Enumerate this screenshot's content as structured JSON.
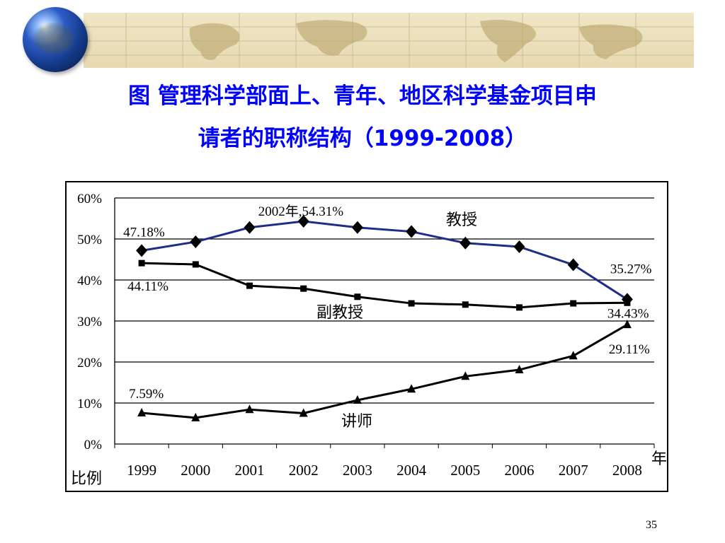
{
  "slide": {
    "title_line1": "图 管理科学部面上、青年、地区科学基金项目申",
    "title_line2": "请者的职称结构（1999-2008）",
    "page_number": "35",
    "title_color": "#0000ff"
  },
  "chart_data": {
    "type": "line",
    "title": "",
    "xlabel": "年份",
    "ylabel": "比例",
    "categories": [
      "1999",
      "2000",
      "2001",
      "2002",
      "2003",
      "2004",
      "2005",
      "2006",
      "2007",
      "2008"
    ],
    "ylim": [
      0,
      60
    ],
    "yticks": [
      "0%",
      "10%",
      "20%",
      "30%",
      "40%",
      "50%",
      "60%"
    ],
    "grid": true,
    "series": [
      {
        "name": "教授",
        "marker": "diamond",
        "color": "#1f2d8a",
        "values": [
          47.18,
          49.3,
          52.8,
          54.31,
          52.8,
          51.8,
          49.0,
          48.1,
          43.7,
          35.27
        ]
      },
      {
        "name": "副教授",
        "marker": "square",
        "color": "#000000",
        "values": [
          44.11,
          43.8,
          38.6,
          37.9,
          35.9,
          34.3,
          34.0,
          33.3,
          34.3,
          34.43
        ]
      },
      {
        "name": "讲师",
        "marker": "triangle",
        "color": "#000000",
        "values": [
          7.59,
          6.4,
          8.4,
          7.5,
          10.7,
          13.4,
          16.5,
          18.1,
          21.5,
          29.11
        ]
      }
    ],
    "annotations": [
      {
        "text": "47.18%",
        "series": 0,
        "index": 0
      },
      {
        "text": "2002年,54.31%",
        "series": 0,
        "index": 3
      },
      {
        "text": "35.27%",
        "series": 0,
        "index": 9
      },
      {
        "text": "44.11%",
        "series": 1,
        "index": 0
      },
      {
        "text": "34.43%",
        "series": 1,
        "index": 9
      },
      {
        "text": "7.59%",
        "series": 2,
        "index": 0
      },
      {
        "text": "29.11%",
        "series": 2,
        "index": 9
      }
    ],
    "series_labels": [
      "教授",
      "副教授",
      "讲师"
    ]
  }
}
